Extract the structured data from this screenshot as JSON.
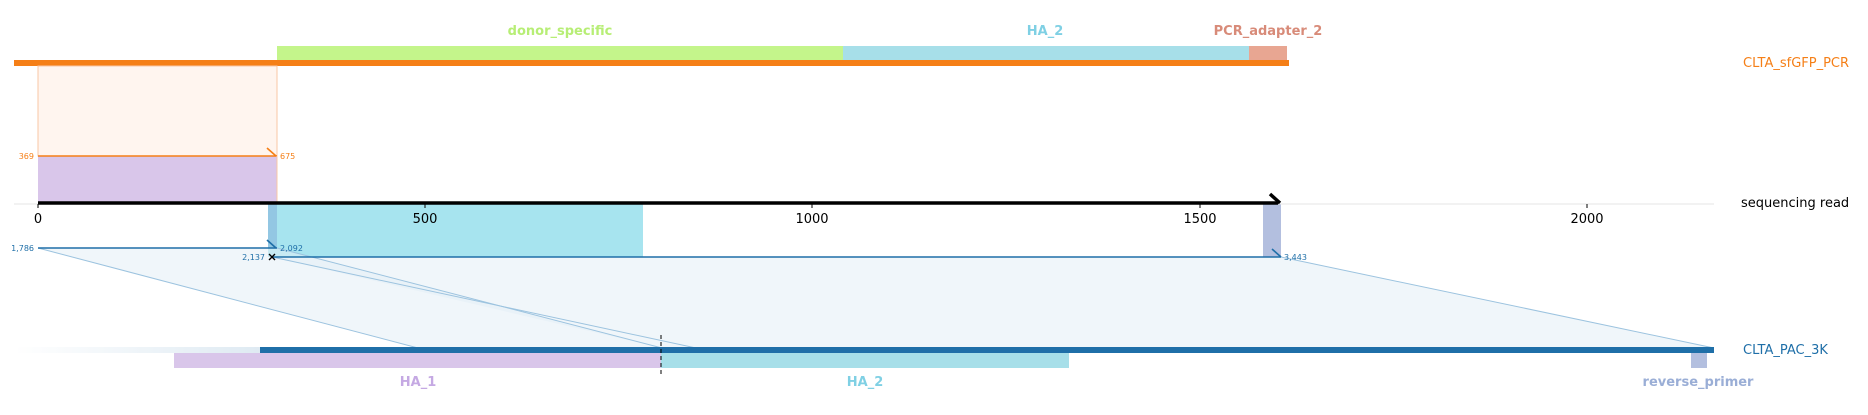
{
  "reference_top": {
    "name": "CLTA_sfGFP_PCR",
    "color": "#f57f17",
    "features": [
      {
        "label": "donor_specific",
        "color": "#c4f58b",
        "text_color": "#b7ee75"
      },
      {
        "label": "HA_2",
        "color": "#a7dfe9",
        "text_color": "#7fd0e4"
      },
      {
        "label": "PCR_adapter_2",
        "color": "#e8a692",
        "text_color": "#d88b79"
      }
    ]
  },
  "read": {
    "name": "sequencing read",
    "color": "#000000",
    "axis_ticks": [
      "0",
      "500",
      "1000",
      "1500",
      "2000"
    ]
  },
  "alignments": {
    "top_start": "369",
    "top_end": "675",
    "bottom_1_start": "1,786",
    "bottom_1_end": "2,092",
    "bottom_2_start": "2,137",
    "bottom_2_end": "3,443"
  },
  "reference_bottom": {
    "name": "CLTA_PAC_3K",
    "color": "#1f6fa8",
    "features": [
      {
        "label": "HA_1",
        "color": "#d9c6ea",
        "text_color": "#c5a9e3"
      },
      {
        "label": "HA_2",
        "color": "#a7dfe9",
        "text_color": "#7fd0e4"
      },
      {
        "label": "reverse_primer",
        "color": "#b3bfdf",
        "text_color": "#9aaed6"
      }
    ]
  }
}
